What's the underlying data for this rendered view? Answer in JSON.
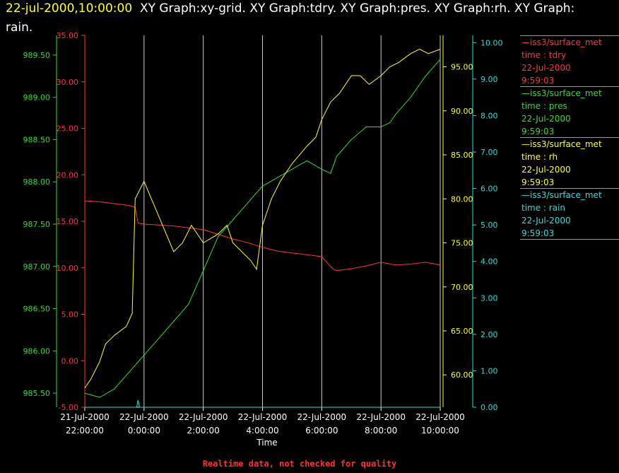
{
  "title": {
    "timestamp": "22-jul-2000,10:00:00",
    "line1_rest": "XY Graph:xy-grid.  XY Graph:tdry.  XY Graph:pres.  XY Graph:rh.  XY Graph:",
    "line2": "rain."
  },
  "footer": "Realtime data, not checked for quality",
  "colors": {
    "tdry": "#ff3344",
    "pres": "#33dd33",
    "rh": "#ffff33",
    "rain": "#33dddd",
    "grid": "#ffffff"
  },
  "legend": [
    {
      "header": "—iss3/surface_met",
      "line2": "time : tdry",
      "line3": "22-Jul-2000",
      "line4": "9:59:03"
    },
    {
      "header": "—iss3/surface_met",
      "line2": "time : pres",
      "line3": "22-Jul-2000",
      "line4": "9:59:03"
    },
    {
      "header": "—iss3/surface_met",
      "line2": "time : rh",
      "line3": "22-Jul-2000",
      "line4": "9:59:03"
    },
    {
      "header": "—iss3/surface_met",
      "line2": "time : rain",
      "line3": "22-Jul-2000",
      "line4": "9:59:03"
    }
  ],
  "chart_data": {
    "type": "line",
    "xlabel": "Time",
    "x_ticks": [
      {
        "d": "21-Jul-2000",
        "t": "22:00:00"
      },
      {
        "d": "22-Jul-2000",
        "t": "0:00:00"
      },
      {
        "d": "22-Jul-2000",
        "t": "2:00:00"
      },
      {
        "d": "22-Jul-2000",
        "t": "4:00:00"
      },
      {
        "d": "22-Jul-2000",
        "t": "6:00:00"
      },
      {
        "d": "22-Jul-2000",
        "t": "8:00:00"
      },
      {
        "d": "22-Jul-2000",
        "t": "10:00:00"
      }
    ],
    "x_tick_hours": [
      -2,
      0,
      2,
      4,
      6,
      8,
      10
    ],
    "xlim_hours_rel_to_midnight_22jul": [
      -2,
      10
    ],
    "grid": "vertical",
    "axes": {
      "tdry": {
        "ylim": [
          -5,
          35
        ],
        "ticks": [
          "-5.00",
          "0.00",
          "5.00",
          "10.00",
          "15.00",
          "20.00",
          "25.00",
          "30.00",
          "35.00"
        ]
      },
      "pres": {
        "ylim": [
          985.3333,
          989.7333
        ],
        "ticks": [
          "985.50",
          "986.00",
          "986.50",
          "987.00",
          "987.50",
          "988.00",
          "988.50",
          "989.00",
          "989.50"
        ]
      },
      "rh": {
        "ylim": [
          56.325,
          98.575
        ],
        "ticks": [
          "60.00",
          "65.00",
          "70.00",
          "75.00",
          "80.00",
          "85.00",
          "90.00",
          "95.00"
        ]
      },
      "rain": {
        "ylim": [
          0,
          10.2
        ],
        "ticks": [
          "0.00",
          "1.00",
          "2.00",
          "3.00",
          "4.00",
          "5.00",
          "6.00",
          "7.00",
          "8.00",
          "9.00",
          "10.00"
        ]
      }
    },
    "series": [
      {
        "name": "tdry",
        "x": [
          -2,
          -1.5,
          -1,
          -0.5,
          -0.3,
          -0.2,
          0,
          0.5,
          1,
          1.5,
          2,
          2.5,
          3,
          3.5,
          4,
          4.5,
          5,
          5.5,
          6,
          6.4,
          6.5,
          7,
          7.5,
          8,
          8.5,
          9,
          9.5,
          10
        ],
        "y": [
          17.2,
          17.1,
          16.9,
          16.7,
          16.5,
          14.8,
          14.7,
          14.6,
          14.5,
          14.3,
          14.1,
          13.6,
          13.1,
          12.7,
          12.2,
          11.8,
          11.6,
          11.4,
          11.2,
          9.8,
          9.7,
          9.9,
          10.2,
          10.6,
          10.3,
          10.4,
          10.6,
          10.3
        ]
      },
      {
        "name": "pres",
        "x": [
          -2,
          -1.5,
          -1,
          -0.5,
          0,
          0.5,
          1,
          1.5,
          2,
          2.5,
          3,
          3.5,
          4,
          4.5,
          5,
          5.5,
          6,
          6.3,
          6.5,
          7,
          7.5,
          8,
          8.3,
          8.5,
          9,
          9.5,
          10
        ],
        "y": [
          985.5,
          985.45,
          985.55,
          985.75,
          985.95,
          986.15,
          986.35,
          986.55,
          986.95,
          987.35,
          987.55,
          987.75,
          987.95,
          988.05,
          988.15,
          988.25,
          988.15,
          988.1,
          988.3,
          988.5,
          988.65,
          988.65,
          988.7,
          988.8,
          989.0,
          989.25,
          989.45
        ]
      },
      {
        "name": "rh",
        "x": [
          -2,
          -1.8,
          -1.5,
          -1.3,
          -1,
          -0.6,
          -0.4,
          -0.3,
          0,
          0.5,
          1,
          1.3,
          1.6,
          2,
          2.5,
          2.8,
          3,
          3.3,
          3.6,
          3.8,
          4,
          4.3,
          4.6,
          5,
          5.5,
          5.8,
          6,
          6.3,
          6.6,
          7,
          7.3,
          7.6,
          8,
          8.3,
          8.6,
          9,
          9.3,
          9.6,
          10
        ],
        "y": [
          58.5,
          59.5,
          61.5,
          63.5,
          64.5,
          65.5,
          67,
          80,
          82,
          78,
          74,
          75,
          77,
          75,
          76,
          77,
          75,
          74,
          73,
          72,
          77,
          80,
          82,
          84,
          86,
          87,
          89,
          91,
          92,
          94,
          94,
          93,
          94,
          95,
          95.5,
          96.5,
          97,
          96.5,
          97
        ]
      },
      {
        "name": "rain",
        "x": [
          -2,
          -0.25,
          -0.2,
          -0.15,
          10
        ],
        "y": [
          0,
          0,
          0.2,
          0,
          0
        ]
      }
    ]
  }
}
